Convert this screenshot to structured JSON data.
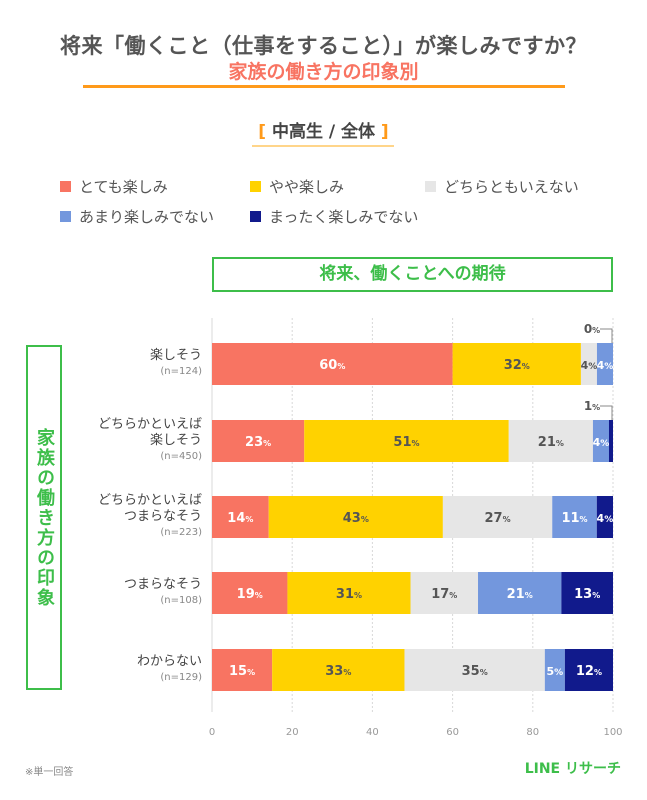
{
  "title": "将来「働くこと（仕事をすること）」が楽しみですか？",
  "subtitle": "家族の働き方の印象別",
  "scope": "中高生 / 全体",
  "header_box": "将来、働くことへの期待",
  "side_label": "家族の働き方の印象",
  "footer_note": "※単一回答",
  "brand": "LINE リサーチ",
  "chart_data": {
    "type": "bar",
    "orientation": "horizontal-stacked",
    "xlim": [
      0,
      100
    ],
    "xticks": [
      "0",
      "20",
      "40",
      "60",
      "80",
      "100"
    ],
    "grid": true,
    "legend_position": "top",
    "value_suffix": "%",
    "categories": [
      {
        "label": "楽しそう",
        "n": "(n=124)"
      },
      {
        "label": "どちらかといえば\n楽しそう",
        "n": "(n=450)"
      },
      {
        "label": "どちらかといえば\nつまらなそう",
        "n": "(n=223)"
      },
      {
        "label": "つまらなそう",
        "n": "(n=108)"
      },
      {
        "label": "わからない",
        "n": "(n=129)"
      }
    ],
    "series": [
      {
        "name": "とても楽しみ",
        "color": "#F87462",
        "values": [
          60,
          23,
          14,
          19,
          15
        ]
      },
      {
        "name": "やや楽しみ",
        "color": "#FFD200",
        "values": [
          32,
          51,
          43,
          31,
          33
        ]
      },
      {
        "name": "どちらともいえない",
        "color": "#E6E6E6",
        "values": [
          4,
          21,
          27,
          17,
          35
        ]
      },
      {
        "name": "あまり楽しみでない",
        "color": "#7397DD",
        "values": [
          4,
          4,
          11,
          21,
          5
        ]
      },
      {
        "name": "まったく楽しみでない",
        "color": "#111A8C",
        "values": [
          0,
          1,
          4,
          13,
          12
        ]
      }
    ]
  }
}
